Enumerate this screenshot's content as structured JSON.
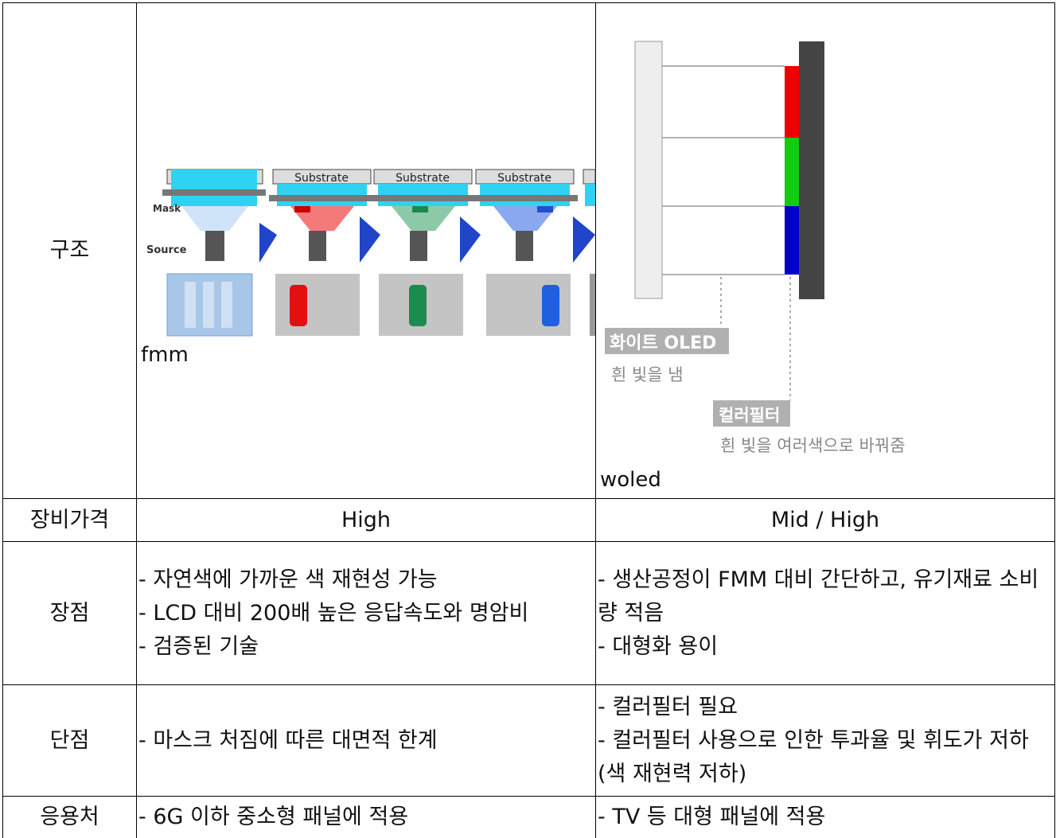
{
  "table": {
    "structure": {
      "label": "구조",
      "fmm": {
        "caption": "fmm",
        "mask": "Mask",
        "source": "Source",
        "substrate": [
          "Substrate",
          "Substrate",
          "Substrate"
        ]
      },
      "woled": {
        "caption": "woled",
        "oled_tag": "화이트 OLED",
        "oled_desc": "흰 빛을 냄",
        "filter_tag": "컬러필터",
        "filter_desc": "흰 빛을 여러색으로 바꿔줌"
      }
    },
    "rows": [
      {
        "label": "장비가격",
        "fmm": [
          "High"
        ],
        "woled": [
          "Mid / High"
        ]
      },
      {
        "label": "장점",
        "fmm": [
          "- 자연색에 가까운 색 재현성 가능",
          "- LCD 대비 200배 높은 응답속도와 명암비",
          "- 검증된 기술"
        ],
        "woled": [
          "- 생산공정이 FMM 대비 간단하고, 유기재료 소비량 적음",
          "- 대형화 용이"
        ]
      },
      {
        "label": "단점",
        "fmm": [
          "- 마스크 처짐에 따른 대면적 한계"
        ],
        "woled": [
          "- 컬러필터 필요",
          "- 컬러필터 사용으로 인한 투과율 및 휘도가 저하(색 재현력 저하)"
        ]
      },
      {
        "label": "응용처",
        "fmm": [
          "- 6G 이하 중소형 패널에 적용"
        ],
        "woled": [
          "- TV 등 대형 패널에 적용"
        ]
      }
    ]
  }
}
